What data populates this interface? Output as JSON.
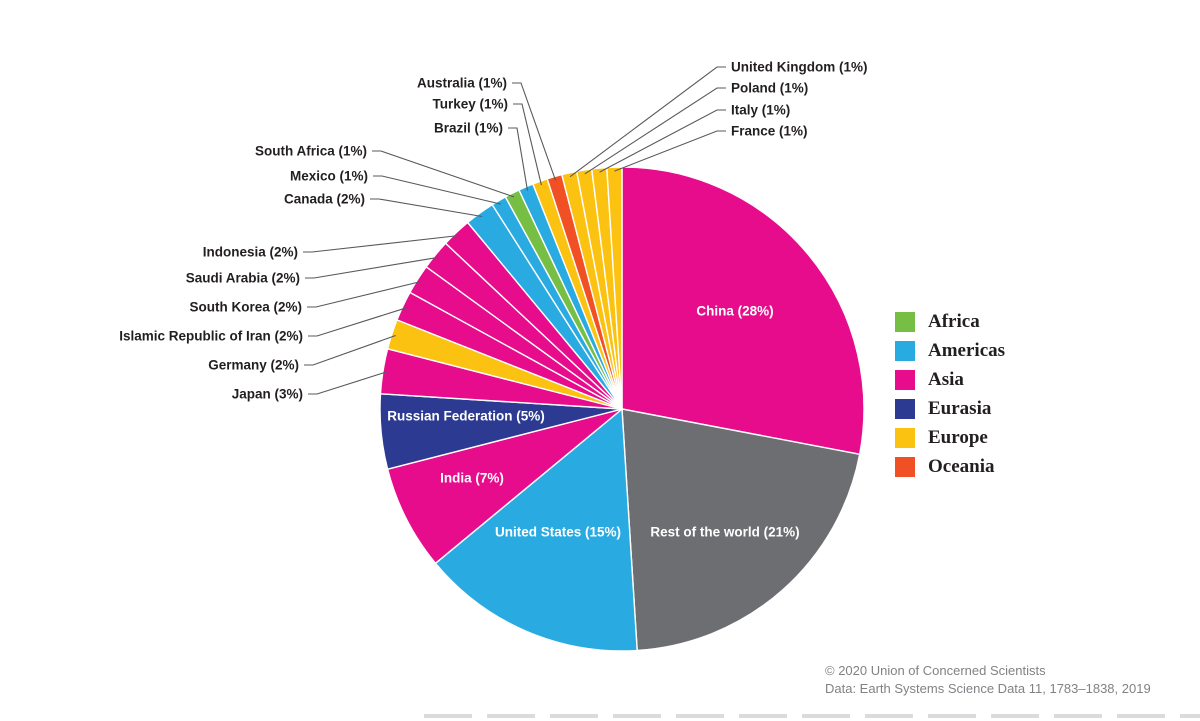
{
  "chart_data": {
    "type": "pie",
    "direction": "clockwise",
    "start_angle_deg": 0,
    "legend": {
      "position": "right",
      "items": [
        {
          "label": "Africa",
          "color": "#76bf44"
        },
        {
          "label": "Americas",
          "color": "#29abe2"
        },
        {
          "label": "Asia",
          "color": "#e60c8c"
        },
        {
          "label": "Eurasia",
          "color": "#2d3a92"
        },
        {
          "label": "Europe",
          "color": "#fcc211"
        },
        {
          "label": "Oceania",
          "color": "#f05023"
        }
      ]
    },
    "slices": [
      {
        "label": "China",
        "display": "China (28%)",
        "value": 28,
        "continent": "Asia",
        "color": "#e60c8c",
        "label_placement": "inside"
      },
      {
        "label": "Rest of the world",
        "display": "Rest of the world (21%)",
        "value": 21,
        "continent": null,
        "color": "#6d6e71",
        "label_placement": "inside"
      },
      {
        "label": "United States",
        "display": "United States (15%)",
        "value": 15,
        "continent": "Americas",
        "color": "#29abe2",
        "label_placement": "inside"
      },
      {
        "label": "India",
        "display": "India (7%)",
        "value": 7,
        "continent": "Asia",
        "color": "#e60c8c",
        "label_placement": "inside"
      },
      {
        "label": "Russian Federation",
        "display": "Russian Federation (5%)",
        "value": 5,
        "continent": "Eurasia",
        "color": "#2d3a92",
        "label_placement": "inside"
      },
      {
        "label": "Japan",
        "display": "Japan (3%)",
        "value": 3,
        "continent": "Asia",
        "color": "#e60c8c",
        "label_placement": "callout"
      },
      {
        "label": "Germany",
        "display": "Germany (2%)",
        "value": 2,
        "continent": "Europe",
        "color": "#fcc211",
        "label_placement": "callout"
      },
      {
        "label": "Islamic Republic of Iran",
        "display": "Islamic Republic of Iran (2%)",
        "value": 2,
        "continent": "Asia",
        "color": "#e60c8c",
        "label_placement": "callout"
      },
      {
        "label": "South Korea",
        "display": "South Korea (2%)",
        "value": 2,
        "continent": "Asia",
        "color": "#e60c8c",
        "label_placement": "callout"
      },
      {
        "label": "Saudi Arabia",
        "display": "Saudi Arabia (2%)",
        "value": 2,
        "continent": "Asia",
        "color": "#e60c8c",
        "label_placement": "callout"
      },
      {
        "label": "Indonesia",
        "display": "Indonesia (2%)",
        "value": 2,
        "continent": "Asia",
        "color": "#e60c8c",
        "label_placement": "callout"
      },
      {
        "label": "Canada",
        "display": "Canada (2%)",
        "value": 2,
        "continent": "Americas",
        "color": "#29abe2",
        "label_placement": "callout"
      },
      {
        "label": "Mexico",
        "display": "Mexico (1%)",
        "value": 1,
        "continent": "Americas",
        "color": "#29abe2",
        "label_placement": "callout"
      },
      {
        "label": "South Africa",
        "display": "South Africa (1%)",
        "value": 1,
        "continent": "Africa",
        "color": "#76bf44",
        "label_placement": "callout"
      },
      {
        "label": "Brazil",
        "display": "Brazil (1%)",
        "value": 1,
        "continent": "Americas",
        "color": "#29abe2",
        "label_placement": "callout"
      },
      {
        "label": "Turkey",
        "display": "Turkey (1%)",
        "value": 1,
        "continent": "Europe",
        "color": "#fcc211",
        "label_placement": "callout"
      },
      {
        "label": "Australia",
        "display": "Australia (1%)",
        "value": 1,
        "continent": "Oceania",
        "color": "#f05023",
        "label_placement": "callout"
      },
      {
        "label": "United Kingdom",
        "display": "United Kingdom (1%)",
        "value": 1,
        "continent": "Europe",
        "color": "#fcc211",
        "label_placement": "callout"
      },
      {
        "label": "Poland",
        "display": "Poland (1%)",
        "value": 1,
        "continent": "Europe",
        "color": "#fcc211",
        "label_placement": "callout"
      },
      {
        "label": "Italy",
        "display": "Italy (1%)",
        "value": 1,
        "continent": "Europe",
        "color": "#fcc211",
        "label_placement": "callout"
      },
      {
        "label": "France",
        "display": "France (1%)",
        "value": 1,
        "continent": "Europe",
        "color": "#fcc211",
        "label_placement": "callout"
      }
    ],
    "footer": {
      "line1": "© 2020 Union of Concerned Scientists",
      "line2": "Data: Earth Systems Science Data 11, 1783–1838, 2019"
    }
  }
}
